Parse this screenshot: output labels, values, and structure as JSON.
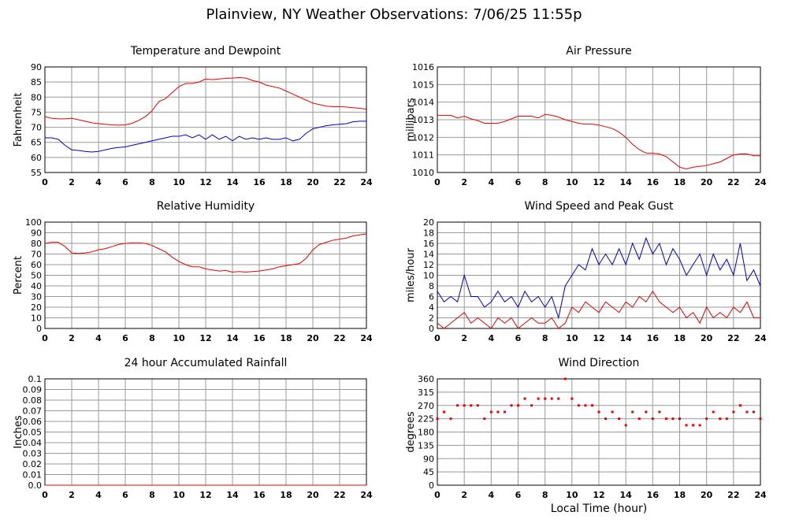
{
  "title": "Plainview, NY Weather Observations: 7/06/25 11:55p",
  "chart_data": [
    {
      "type": "line",
      "title": "Temperature and Dewpoint",
      "y_label": "Fahrenheit",
      "grid": true,
      "xlim": [
        0,
        24
      ],
      "xticks": [
        0,
        2,
        4,
        6,
        8,
        10,
        12,
        14,
        16,
        18,
        20,
        22,
        24
      ],
      "ylim": [
        55,
        90
      ],
      "yticks": [
        55,
        60,
        65,
        70,
        75,
        80,
        85,
        90
      ],
      "x": [
        0,
        0.5,
        1,
        1.5,
        2,
        2.5,
        3,
        3.5,
        4,
        4.5,
        5,
        5.5,
        6,
        6.5,
        7,
        7.5,
        8,
        8.5,
        9,
        9.5,
        10,
        10.5,
        11,
        11.5,
        12,
        12.5,
        13,
        13.5,
        14,
        14.5,
        15,
        15.5,
        16,
        16.5,
        17,
        17.5,
        18,
        18.5,
        19,
        19.5,
        20,
        20.5,
        21,
        21.5,
        22,
        22.5,
        23,
        23.5,
        24
      ],
      "series": [
        {
          "color": "#ee0000",
          "values": [
            73.5,
            73,
            72.8,
            72.8,
            73,
            72.5,
            72,
            71.5,
            71.2,
            71,
            70.8,
            70.7,
            70.8,
            71.3,
            72.3,
            73.5,
            75.5,
            78.5,
            79.5,
            81.5,
            83.5,
            84.5,
            84.5,
            85,
            86,
            85.8,
            86,
            86.2,
            86.3,
            86.5,
            86.3,
            85.5,
            85,
            84,
            83.5,
            83,
            82,
            81,
            80,
            79,
            78,
            77.5,
            77,
            76.8,
            76.8,
            76.7,
            76.5,
            76.3,
            76
          ]
        },
        {
          "color": "#0000cc",
          "values": [
            66.5,
            66.5,
            66,
            64,
            62.5,
            62.3,
            62,
            61.8,
            62,
            62.5,
            63,
            63.3,
            63.5,
            64,
            64.5,
            65,
            65.5,
            66,
            66.5,
            67,
            67,
            67.5,
            66.5,
            67.5,
            66,
            67.5,
            66,
            67,
            65.5,
            67,
            66,
            66.5,
            66,
            66.5,
            66,
            66,
            66.5,
            65.5,
            66,
            68,
            69.5,
            70,
            70.5,
            70.8,
            71,
            71.2,
            71.8,
            72,
            72
          ]
        }
      ]
    },
    {
      "type": "line",
      "title": "Air Pressure",
      "y_label": "millibars",
      "grid": true,
      "xlim": [
        0,
        24
      ],
      "xticks": [
        0,
        2,
        4,
        6,
        8,
        10,
        12,
        14,
        16,
        18,
        20,
        22,
        24
      ],
      "ylim": [
        1010,
        1016
      ],
      "yticks": [
        1010,
        1011,
        1012,
        1013,
        1014,
        1015,
        1016
      ],
      "x": [
        0,
        0.5,
        1,
        1.5,
        2,
        2.5,
        3,
        3.5,
        4,
        4.5,
        5,
        5.5,
        6,
        6.5,
        7,
        7.5,
        8,
        8.5,
        9,
        9.5,
        10,
        10.5,
        11,
        11.5,
        12,
        12.5,
        13,
        13.5,
        14,
        14.5,
        15,
        15.5,
        16,
        16.5,
        17,
        17.5,
        18,
        18.5,
        19,
        19.5,
        20,
        20.5,
        21,
        21.5,
        22,
        22.5,
        23,
        23.5,
        24
      ],
      "series": [
        {
          "color": "#ee0000",
          "values": [
            1013.25,
            1013.25,
            1013.25,
            1013.1,
            1013.2,
            1013.05,
            1012.95,
            1012.8,
            1012.8,
            1012.8,
            1012.9,
            1013.05,
            1013.2,
            1013.2,
            1013.2,
            1013.1,
            1013.3,
            1013.25,
            1013.15,
            1013,
            1012.9,
            1012.8,
            1012.75,
            1012.75,
            1012.7,
            1012.6,
            1012.5,
            1012.3,
            1012,
            1011.6,
            1011.3,
            1011.1,
            1011.1,
            1011.05,
            1010.9,
            1010.6,
            1010.3,
            1010.2,
            1010.3,
            1010.35,
            1010.4,
            1010.5,
            1010.6,
            1010.8,
            1011,
            1011.05,
            1011.05,
            1010.95,
            1010.95
          ]
        }
      ]
    },
    {
      "type": "line",
      "title": "Relative Humidity",
      "y_label": "Percent",
      "grid": true,
      "xlim": [
        0,
        24
      ],
      "xticks": [
        0,
        2,
        4,
        6,
        8,
        10,
        12,
        14,
        16,
        18,
        20,
        22,
        24
      ],
      "ylim": [
        0,
        100
      ],
      "yticks": [
        0,
        10,
        20,
        30,
        40,
        50,
        60,
        70,
        80,
        90,
        100
      ],
      "x": [
        0,
        0.5,
        1,
        1.5,
        2,
        2.5,
        3,
        3.5,
        4,
        4.5,
        5,
        5.5,
        6,
        6.5,
        7,
        7.5,
        8,
        8.5,
        9,
        9.5,
        10,
        10.5,
        11,
        11.5,
        12,
        12.5,
        13,
        13.5,
        14,
        14.5,
        15,
        15.5,
        16,
        16.5,
        17,
        17.5,
        18,
        18.5,
        19,
        19.5,
        20,
        20.5,
        21,
        21.5,
        22,
        22.5,
        23,
        23.5,
        24
      ],
      "series": [
        {
          "color": "#ee0000",
          "values": [
            80,
            81,
            81,
            77,
            71,
            70.5,
            71,
            72,
            74,
            75,
            77,
            79,
            80,
            80.5,
            80.5,
            80,
            78,
            75,
            72,
            67,
            63,
            60,
            58,
            58,
            56,
            55,
            54,
            54.5,
            53,
            53.5,
            53,
            53.5,
            54,
            55,
            56,
            58,
            59,
            60,
            61,
            66,
            74,
            79,
            81,
            83,
            84,
            85,
            87,
            88,
            89
          ]
        }
      ]
    },
    {
      "type": "line",
      "title": "Wind Speed and Peak Gust",
      "y_label": "miles/hour",
      "grid": true,
      "xlim": [
        0,
        24
      ],
      "xticks": [
        0,
        2,
        4,
        6,
        8,
        10,
        12,
        14,
        16,
        18,
        20,
        22,
        24
      ],
      "ylim": [
        0,
        20
      ],
      "yticks": [
        0,
        2,
        4,
        6,
        8,
        10,
        12,
        14,
        16,
        18,
        20
      ],
      "x": [
        0,
        0.5,
        1,
        1.5,
        2,
        2.5,
        3,
        3.5,
        4,
        4.5,
        5,
        5.5,
        6,
        6.5,
        7,
        7.5,
        8,
        8.5,
        9,
        9.5,
        10,
        10.5,
        11,
        11.5,
        12,
        12.5,
        13,
        13.5,
        14,
        14.5,
        15,
        15.5,
        16,
        16.5,
        17,
        17.5,
        18,
        18.5,
        19,
        19.5,
        20,
        20.5,
        21,
        21.5,
        22,
        22.5,
        23,
        23.5,
        24
      ],
      "series": [
        {
          "color": "#0000cc",
          "values": [
            7,
            5,
            6,
            5,
            10,
            6,
            6,
            4,
            5,
            7,
            5,
            6,
            4,
            7,
            5,
            6,
            4,
            6,
            2,
            8,
            10,
            12,
            11,
            15,
            12,
            14,
            12,
            15,
            12,
            16,
            13,
            17,
            14,
            16,
            12,
            15,
            13,
            10,
            12,
            14,
            10,
            14,
            11,
            13,
            10,
            16,
            9,
            11,
            8
          ]
        },
        {
          "color": "#ee0000",
          "values": [
            1,
            0,
            1,
            2,
            3,
            1,
            2,
            1,
            0,
            2,
            1,
            2,
            0,
            1,
            2,
            1,
            1,
            2,
            0,
            1,
            4,
            3,
            5,
            4,
            3,
            5,
            4,
            3,
            5,
            4,
            6,
            5,
            7,
            5,
            4,
            3,
            4,
            2,
            3,
            1,
            4,
            2,
            3,
            2,
            4,
            3,
            5,
            2,
            2
          ]
        }
      ]
    },
    {
      "type": "line",
      "title": "24 hour Accumulated Rainfall",
      "y_label": "Inches",
      "grid": true,
      "xlim": [
        0,
        24
      ],
      "xticks": [
        0,
        2,
        4,
        6,
        8,
        10,
        12,
        14,
        16,
        18,
        20,
        22,
        24
      ],
      "ylim": [
        0,
        0.1
      ],
      "yticks": [
        {
          "value": 0,
          "label": "0.0"
        },
        0.01,
        0.02,
        0.03,
        0.04,
        0.05,
        0.06,
        0.07,
        0.08,
        0.09,
        0.1
      ],
      "x": [
        0,
        24
      ],
      "series": [
        {
          "color": "#ee0000",
          "values": [
            0,
            0
          ]
        }
      ]
    },
    {
      "type": "scatter",
      "title": "Wind Direction",
      "y_label": "degrees",
      "x_label": "Local Time (hour)",
      "grid": true,
      "xlim": [
        0,
        24
      ],
      "xticks": [
        0,
        2,
        4,
        6,
        8,
        10,
        12,
        14,
        16,
        18,
        20,
        22,
        24
      ],
      "ylim": [
        0,
        360
      ],
      "yticks": [
        0,
        45,
        90,
        135,
        180,
        225,
        270,
        315,
        360
      ],
      "x": [
        0,
        0.5,
        1,
        1.5,
        2,
        2.5,
        3,
        3.5,
        4,
        4.5,
        5,
        5.5,
        6,
        6.5,
        7,
        7.5,
        8,
        8.5,
        9,
        9.5,
        10,
        10.5,
        11,
        11.5,
        12,
        12.5,
        13,
        13.5,
        14,
        14.5,
        15,
        15.5,
        16,
        16.5,
        17,
        17.5,
        18,
        18.5,
        19,
        19.5,
        20,
        20.5,
        21,
        21.5,
        22,
        22.5,
        23,
        23.5,
        24
      ],
      "series": [
        {
          "color": "#ee0000",
          "values": [
            225,
            248,
            225,
            270,
            270,
            270,
            270,
            225,
            248,
            248,
            248,
            270,
            270,
            293,
            270,
            293,
            293,
            293,
            293,
            360,
            293,
            270,
            270,
            270,
            248,
            225,
            248,
            225,
            203,
            248,
            225,
            248,
            225,
            248,
            225,
            225,
            225,
            203,
            203,
            203,
            225,
            248,
            225,
            225,
            248,
            270,
            248,
            248,
            225
          ]
        }
      ]
    }
  ]
}
